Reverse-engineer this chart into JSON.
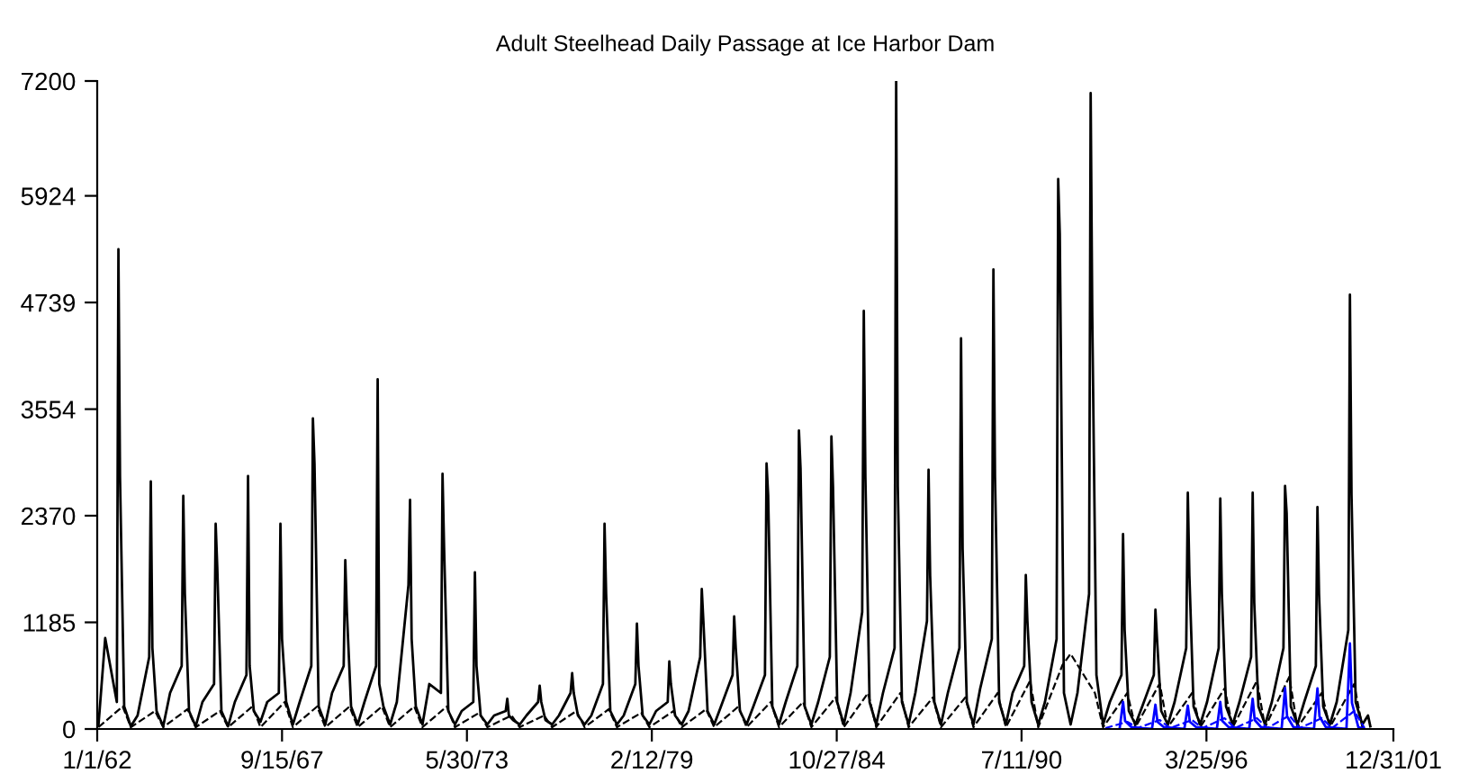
{
  "chart_data": {
    "type": "line",
    "title": "Adult Steelhead Daily Passage at Ice Harbor Dam",
    "xlim": [
      "1962-01-01",
      "2001-12-31"
    ],
    "ylim": [
      0,
      7200
    ],
    "xticks": [
      {
        "value": "1962-01-01",
        "label": "1/1/62"
      },
      {
        "value": "1967-09-15",
        "label": "9/15/67"
      },
      {
        "value": "1973-05-30",
        "label": "5/30/73"
      },
      {
        "value": "1979-02-12",
        "label": "2/12/79"
      },
      {
        "value": "1984-10-27",
        "label": "10/27/84"
      },
      {
        "value": "1990-07-11",
        "label": "7/11/90"
      },
      {
        "value": "1996-03-25",
        "label": "3/25/96"
      },
      {
        "value": "2001-12-31",
        "label": "12/31/01"
      }
    ],
    "yticks": [
      0,
      1185,
      2370,
      3554,
      4739,
      5924,
      7200
    ],
    "grid": false,
    "legend": false,
    "series": [
      {
        "color": "#000000",
        "line_style": "solid",
        "x": [
          "1962-01-15",
          "1962-04-01",
          "1962-08-10",
          "1962-08-28",
          "1962-09-15",
          "1962-11-01",
          "1963-01-15",
          "1963-04-01",
          "1963-08-10",
          "1963-08-28",
          "1963-09-15",
          "1963-11-01",
          "1964-01-15",
          "1964-04-01",
          "1964-08-10",
          "1964-08-28",
          "1964-09-15",
          "1964-11-01",
          "1965-01-15",
          "1965-04-01",
          "1965-08-10",
          "1965-08-28",
          "1965-09-15",
          "1965-11-01",
          "1966-01-15",
          "1966-04-01",
          "1966-08-10",
          "1966-08-28",
          "1966-09-15",
          "1966-11-01",
          "1967-01-15",
          "1967-04-01",
          "1967-08-10",
          "1967-08-28",
          "1967-09-15",
          "1967-11-01",
          "1968-01-15",
          "1968-04-01",
          "1968-08-10",
          "1968-08-28",
          "1968-09-15",
          "1968-11-01",
          "1969-01-15",
          "1969-04-01",
          "1969-08-10",
          "1969-08-28",
          "1969-09-15",
          "1969-11-01",
          "1970-01-15",
          "1970-04-01",
          "1970-08-10",
          "1970-08-28",
          "1970-09-15",
          "1970-11-01",
          "1971-01-15",
          "1971-04-01",
          "1971-08-10",
          "1971-08-28",
          "1971-09-15",
          "1971-11-01",
          "1972-01-15",
          "1972-04-01",
          "1972-08-10",
          "1972-08-28",
          "1972-09-15",
          "1972-11-01",
          "1973-01-15",
          "1973-04-01",
          "1973-08-10",
          "1973-08-28",
          "1973-09-15",
          "1973-11-01",
          "1974-01-15",
          "1974-04-01",
          "1974-08-10",
          "1974-08-28",
          "1974-09-15",
          "1974-11-01",
          "1975-01-15",
          "1975-04-01",
          "1975-08-10",
          "1975-08-28",
          "1975-09-15",
          "1975-11-01",
          "1976-01-15",
          "1976-04-01",
          "1976-08-10",
          "1976-08-28",
          "1976-09-15",
          "1976-11-01",
          "1977-01-15",
          "1977-04-01",
          "1977-08-10",
          "1977-08-28",
          "1977-09-15",
          "1977-11-01",
          "1978-01-15",
          "1978-04-01",
          "1978-08-10",
          "1978-08-28",
          "1978-09-15",
          "1978-11-01",
          "1979-01-15",
          "1979-04-01",
          "1979-08-10",
          "1979-08-28",
          "1979-09-15",
          "1979-11-01",
          "1980-01-15",
          "1980-04-01",
          "1980-08-10",
          "1980-08-28",
          "1980-09-15",
          "1980-11-01",
          "1981-01-15",
          "1981-04-01",
          "1981-08-10",
          "1981-08-28",
          "1981-09-15",
          "1981-11-01",
          "1982-01-15",
          "1982-04-01",
          "1982-08-10",
          "1982-08-28",
          "1982-09-15",
          "1982-11-01",
          "1983-01-15",
          "1983-04-01",
          "1983-08-10",
          "1983-08-28",
          "1983-09-15",
          "1983-11-01",
          "1984-01-15",
          "1984-04-01",
          "1984-08-10",
          "1984-08-28",
          "1984-09-15",
          "1984-11-01",
          "1985-01-15",
          "1985-04-01",
          "1985-08-10",
          "1985-08-28",
          "1985-09-15",
          "1985-11-01",
          "1986-01-15",
          "1986-04-01",
          "1986-08-10",
          "1986-08-28",
          "1986-09-15",
          "1986-11-01",
          "1987-01-15",
          "1987-04-01",
          "1987-08-10",
          "1987-08-28",
          "1987-09-15",
          "1987-11-01",
          "1988-01-15",
          "1988-04-01",
          "1988-08-10",
          "1988-08-28",
          "1988-09-15",
          "1988-11-01",
          "1989-01-15",
          "1989-04-01",
          "1989-08-10",
          "1989-08-28",
          "1989-09-15",
          "1989-11-01",
          "1990-01-15",
          "1990-04-01",
          "1990-08-10",
          "1990-08-28",
          "1990-09-15",
          "1990-11-01",
          "1991-01-15",
          "1991-04-01",
          "1991-08-10",
          "1991-08-28",
          "1991-09-15",
          "1991-11-01",
          "1992-01-15",
          "1992-04-01",
          "1992-08-10",
          "1992-08-28",
          "1992-09-15",
          "1992-11-01",
          "1993-01-15",
          "1993-04-01",
          "1993-08-10",
          "1993-08-28",
          "1993-09-15",
          "1993-11-01",
          "1994-01-15",
          "1994-04-01",
          "1994-08-10",
          "1994-08-28",
          "1994-09-15",
          "1994-11-01",
          "1995-01-15",
          "1995-04-01",
          "1995-08-10",
          "1995-08-28",
          "1995-09-15",
          "1995-11-01",
          "1996-01-15",
          "1996-04-01",
          "1996-08-10",
          "1996-08-28",
          "1996-09-15",
          "1996-11-01",
          "1997-01-15",
          "1997-04-01",
          "1997-08-10",
          "1997-08-28",
          "1997-09-15",
          "1997-11-01",
          "1998-01-15",
          "1998-04-01",
          "1998-08-10",
          "1998-08-28",
          "1998-09-15",
          "1998-11-01",
          "1999-01-15",
          "1999-04-01",
          "1999-08-10",
          "1999-08-28",
          "1999-09-15",
          "1999-11-01",
          "2000-01-15",
          "2000-04-01",
          "2000-08-10",
          "2000-08-28",
          "2000-09-15",
          "2000-11-01",
          "2001-01-15",
          "2001-03-20",
          "2001-04-15"
        ],
        "values": [
          40,
          1010,
          300,
          5330,
          2800,
          250,
          30,
          150,
          800,
          2750,
          900,
          200,
          30,
          400,
          700,
          2590,
          1500,
          200,
          30,
          300,
          500,
          2280,
          1800,
          200,
          30,
          300,
          600,
          2810,
          700,
          200,
          80,
          300,
          400,
          2280,
          1000,
          300,
          50,
          300,
          700,
          3450,
          2950,
          250,
          50,
          400,
          700,
          1875,
          1300,
          250,
          50,
          300,
          700,
          3885,
          500,
          250,
          50,
          300,
          1600,
          2545,
          1000,
          250,
          50,
          500,
          400,
          2835,
          2000,
          200,
          50,
          200,
          300,
          1740,
          700,
          150,
          50,
          150,
          200,
          335,
          150,
          100,
          50,
          150,
          300,
          480,
          300,
          100,
          50,
          150,
          400,
          620,
          400,
          150,
          50,
          150,
          500,
          2280,
          1500,
          200,
          50,
          150,
          500,
          1170,
          700,
          150,
          50,
          200,
          300,
          750,
          500,
          150,
          50,
          200,
          800,
          1555,
          1200,
          200,
          50,
          250,
          600,
          1250,
          900,
          200,
          50,
          250,
          600,
          2950,
          2600,
          250,
          50,
          300,
          700,
          3315,
          2900,
          250,
          50,
          300,
          800,
          3250,
          2700,
          300,
          50,
          400,
          1300,
          4645,
          2800,
          300,
          50,
          400,
          900,
          7200,
          2700,
          300,
          50,
          400,
          1200,
          2880,
          1700,
          300,
          50,
          400,
          900,
          4340,
          2000,
          300,
          50,
          450,
          1000,
          5105,
          2800,
          300,
          50,
          400,
          700,
          1710,
          1200,
          300,
          50,
          300,
          1000,
          6110,
          5500,
          400,
          50,
          400,
          1500,
          7065,
          4600,
          600,
          50,
          300,
          600,
          2165,
          1100,
          200,
          50,
          250,
          600,
          1325,
          1000,
          200,
          50,
          300,
          900,
          2625,
          1700,
          250,
          50,
          300,
          900,
          2560,
          1500,
          250,
          50,
          300,
          800,
          2625,
          1400,
          250,
          50,
          300,
          900,
          2700,
          2400,
          250,
          50,
          300,
          700,
          2465,
          1500,
          250,
          50,
          300,
          1100,
          4825,
          2600,
          300,
          50,
          150,
          30
        ]
      },
      {
        "color": "#000000",
        "line_style": "dashed",
        "x": [
          "1962-01-15",
          "1962-10-15",
          "1963-01-15",
          "1963-10-15",
          "1964-01-15",
          "1964-10-15",
          "1965-01-15",
          "1965-10-15",
          "1966-01-15",
          "1966-10-15",
          "1967-01-15",
          "1967-10-15",
          "1968-01-15",
          "1968-10-15",
          "1969-01-15",
          "1969-10-15",
          "1970-01-15",
          "1970-10-15",
          "1971-01-15",
          "1971-10-15",
          "1972-01-15",
          "1972-10-15",
          "1973-01-15",
          "1973-10-15",
          "1974-01-15",
          "1974-10-15",
          "1975-01-15",
          "1975-10-15",
          "1976-01-15",
          "1976-10-15",
          "1977-01-15",
          "1977-10-15",
          "1978-01-15",
          "1978-10-15",
          "1979-01-15",
          "1979-10-15",
          "1980-01-15",
          "1980-10-15",
          "1981-01-15",
          "1981-10-15",
          "1982-01-15",
          "1982-10-15",
          "1983-01-15",
          "1983-10-15",
          "1984-01-15",
          "1984-10-15",
          "1985-01-15",
          "1985-10-15",
          "1986-01-15",
          "1986-10-15",
          "1987-01-15",
          "1987-10-15",
          "1988-01-15",
          "1988-10-15",
          "1989-01-15",
          "1989-10-15",
          "1990-01-15",
          "1990-10-15",
          "1991-01-15",
          "1991-10-15",
          "1992-01-15",
          "1992-10-15",
          "1993-01-15",
          "1993-10-15",
          "1994-01-15",
          "1994-10-15",
          "1995-01-15",
          "1995-10-15",
          "1996-01-15",
          "1996-10-15",
          "1997-01-15",
          "1997-10-15",
          "1998-01-15",
          "1998-10-15",
          "1999-01-15",
          "1999-10-15",
          "2000-01-15",
          "2000-10-15",
          "2001-01-15"
        ],
        "values": [
          20,
          250,
          20,
          200,
          20,
          220,
          20,
          200,
          20,
          250,
          20,
          300,
          20,
          250,
          20,
          250,
          20,
          250,
          20,
          250,
          20,
          250,
          20,
          180,
          20,
          150,
          20,
          150,
          20,
          200,
          20,
          220,
          20,
          180,
          20,
          200,
          20,
          220,
          20,
          250,
          20,
          300,
          20,
          300,
          20,
          350,
          20,
          400,
          20,
          400,
          20,
          350,
          20,
          350,
          20,
          400,
          20,
          535,
          20,
          710,
          835,
          400,
          20,
          400,
          20,
          505,
          20,
          400,
          20,
          450,
          20,
          535,
          20,
          580,
          20,
          400,
          20,
          500,
          20
        ]
      },
      {
        "color": "#0000ff",
        "line_style": "solid",
        "x": [
          "1993-07-20",
          "1993-08-28",
          "1993-09-20",
          "1993-12-01",
          "1994-07-20",
          "1994-08-28",
          "1994-09-20",
          "1994-12-01",
          "1995-07-20",
          "1995-08-28",
          "1995-09-20",
          "1995-12-01",
          "1996-07-20",
          "1996-08-28",
          "1996-09-20",
          "1996-12-01",
          "1997-07-20",
          "1997-08-28",
          "1997-09-20",
          "1997-12-01",
          "1998-07-20",
          "1998-08-28",
          "1998-09-20",
          "1998-12-01",
          "1999-07-20",
          "1999-08-28",
          "1999-09-20",
          "1999-12-01",
          "2000-07-20",
          "2000-08-28",
          "2000-09-20",
          "2000-12-01",
          "2001-01-15"
        ],
        "values": [
          0,
          300,
          90,
          20,
          0,
          270,
          80,
          20,
          0,
          260,
          80,
          20,
          0,
          300,
          90,
          20,
          0,
          335,
          100,
          20,
          0,
          455,
          140,
          20,
          0,
          450,
          140,
          20,
          0,
          950,
          290,
          20,
          10
        ]
      },
      {
        "color": "#0000ff",
        "line_style": "dashed",
        "x": [
          "1993-02-10",
          "1993-10-15",
          "1994-02-10",
          "1994-10-15",
          "1995-02-10",
          "1995-10-15",
          "1996-02-10",
          "1996-10-15",
          "1997-02-10",
          "1997-10-15",
          "1998-02-10",
          "1998-10-15",
          "1999-02-10",
          "1999-10-15",
          "2000-02-10",
          "2000-10-15",
          "2001-02-10"
        ],
        "values": [
          10,
          80,
          10,
          100,
          10,
          100,
          10,
          120,
          10,
          120,
          10,
          150,
          10,
          120,
          10,
          200,
          10
        ]
      }
    ]
  }
}
